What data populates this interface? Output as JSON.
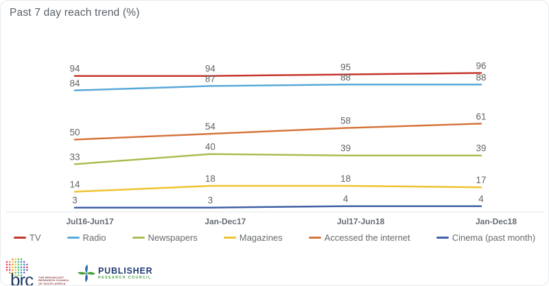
{
  "title": "Past 7 day reach trend (%)",
  "chart_data": {
    "type": "line",
    "title": "Past 7 day reach trend (%)",
    "categories": [
      "Jul16-Jun17",
      "Jan-Dec17",
      "Jul17-Jun18",
      "Jan-Dec18"
    ],
    "series": [
      {
        "name": "TV",
        "color": "#c5342b",
        "values": [
          94,
          94,
          95,
          96
        ]
      },
      {
        "name": "Radio",
        "color": "#58a8d8",
        "values": [
          84,
          87,
          88,
          88
        ]
      },
      {
        "name": "Newspapers",
        "color": "#a8bd50",
        "values": [
          33,
          40,
          39,
          39
        ]
      },
      {
        "name": "Magazines",
        "color": "#edc32e",
        "values": [
          14,
          18,
          18,
          17
        ]
      },
      {
        "name": "Accessed the internet",
        "color": "#d6733c",
        "values": [
          50,
          54,
          58,
          61
        ]
      },
      {
        "name": "Cinema (past month)",
        "color": "#3f5fa5",
        "values": [
          3,
          3,
          4,
          4
        ]
      }
    ],
    "xlabel": "",
    "ylabel": "",
    "ylim": [
      0,
      100
    ],
    "grid": false,
    "data_labels": true,
    "legend_position": "bottom"
  },
  "footer": {
    "brc": {
      "wordmark": "brc",
      "tagline_lines": [
        "THE BROADCAST",
        "RESEARCH COUNCIL",
        "OF SOUTH AFRICA"
      ]
    },
    "prc": {
      "name": "PUBLISHER",
      "subtitle": "RESEARCH COUNCIL"
    }
  },
  "colors": {
    "title_text": "#566069",
    "data_label": "#636363",
    "axis_label": "#666b73",
    "axis_line": "#e2e4e8",
    "legend_text": "#65696c",
    "brc_navy": "#1c3a63",
    "brc_tagline_red": "#8f4045",
    "prc_navy": "#203a72",
    "prc_green": "#3f9c35"
  }
}
